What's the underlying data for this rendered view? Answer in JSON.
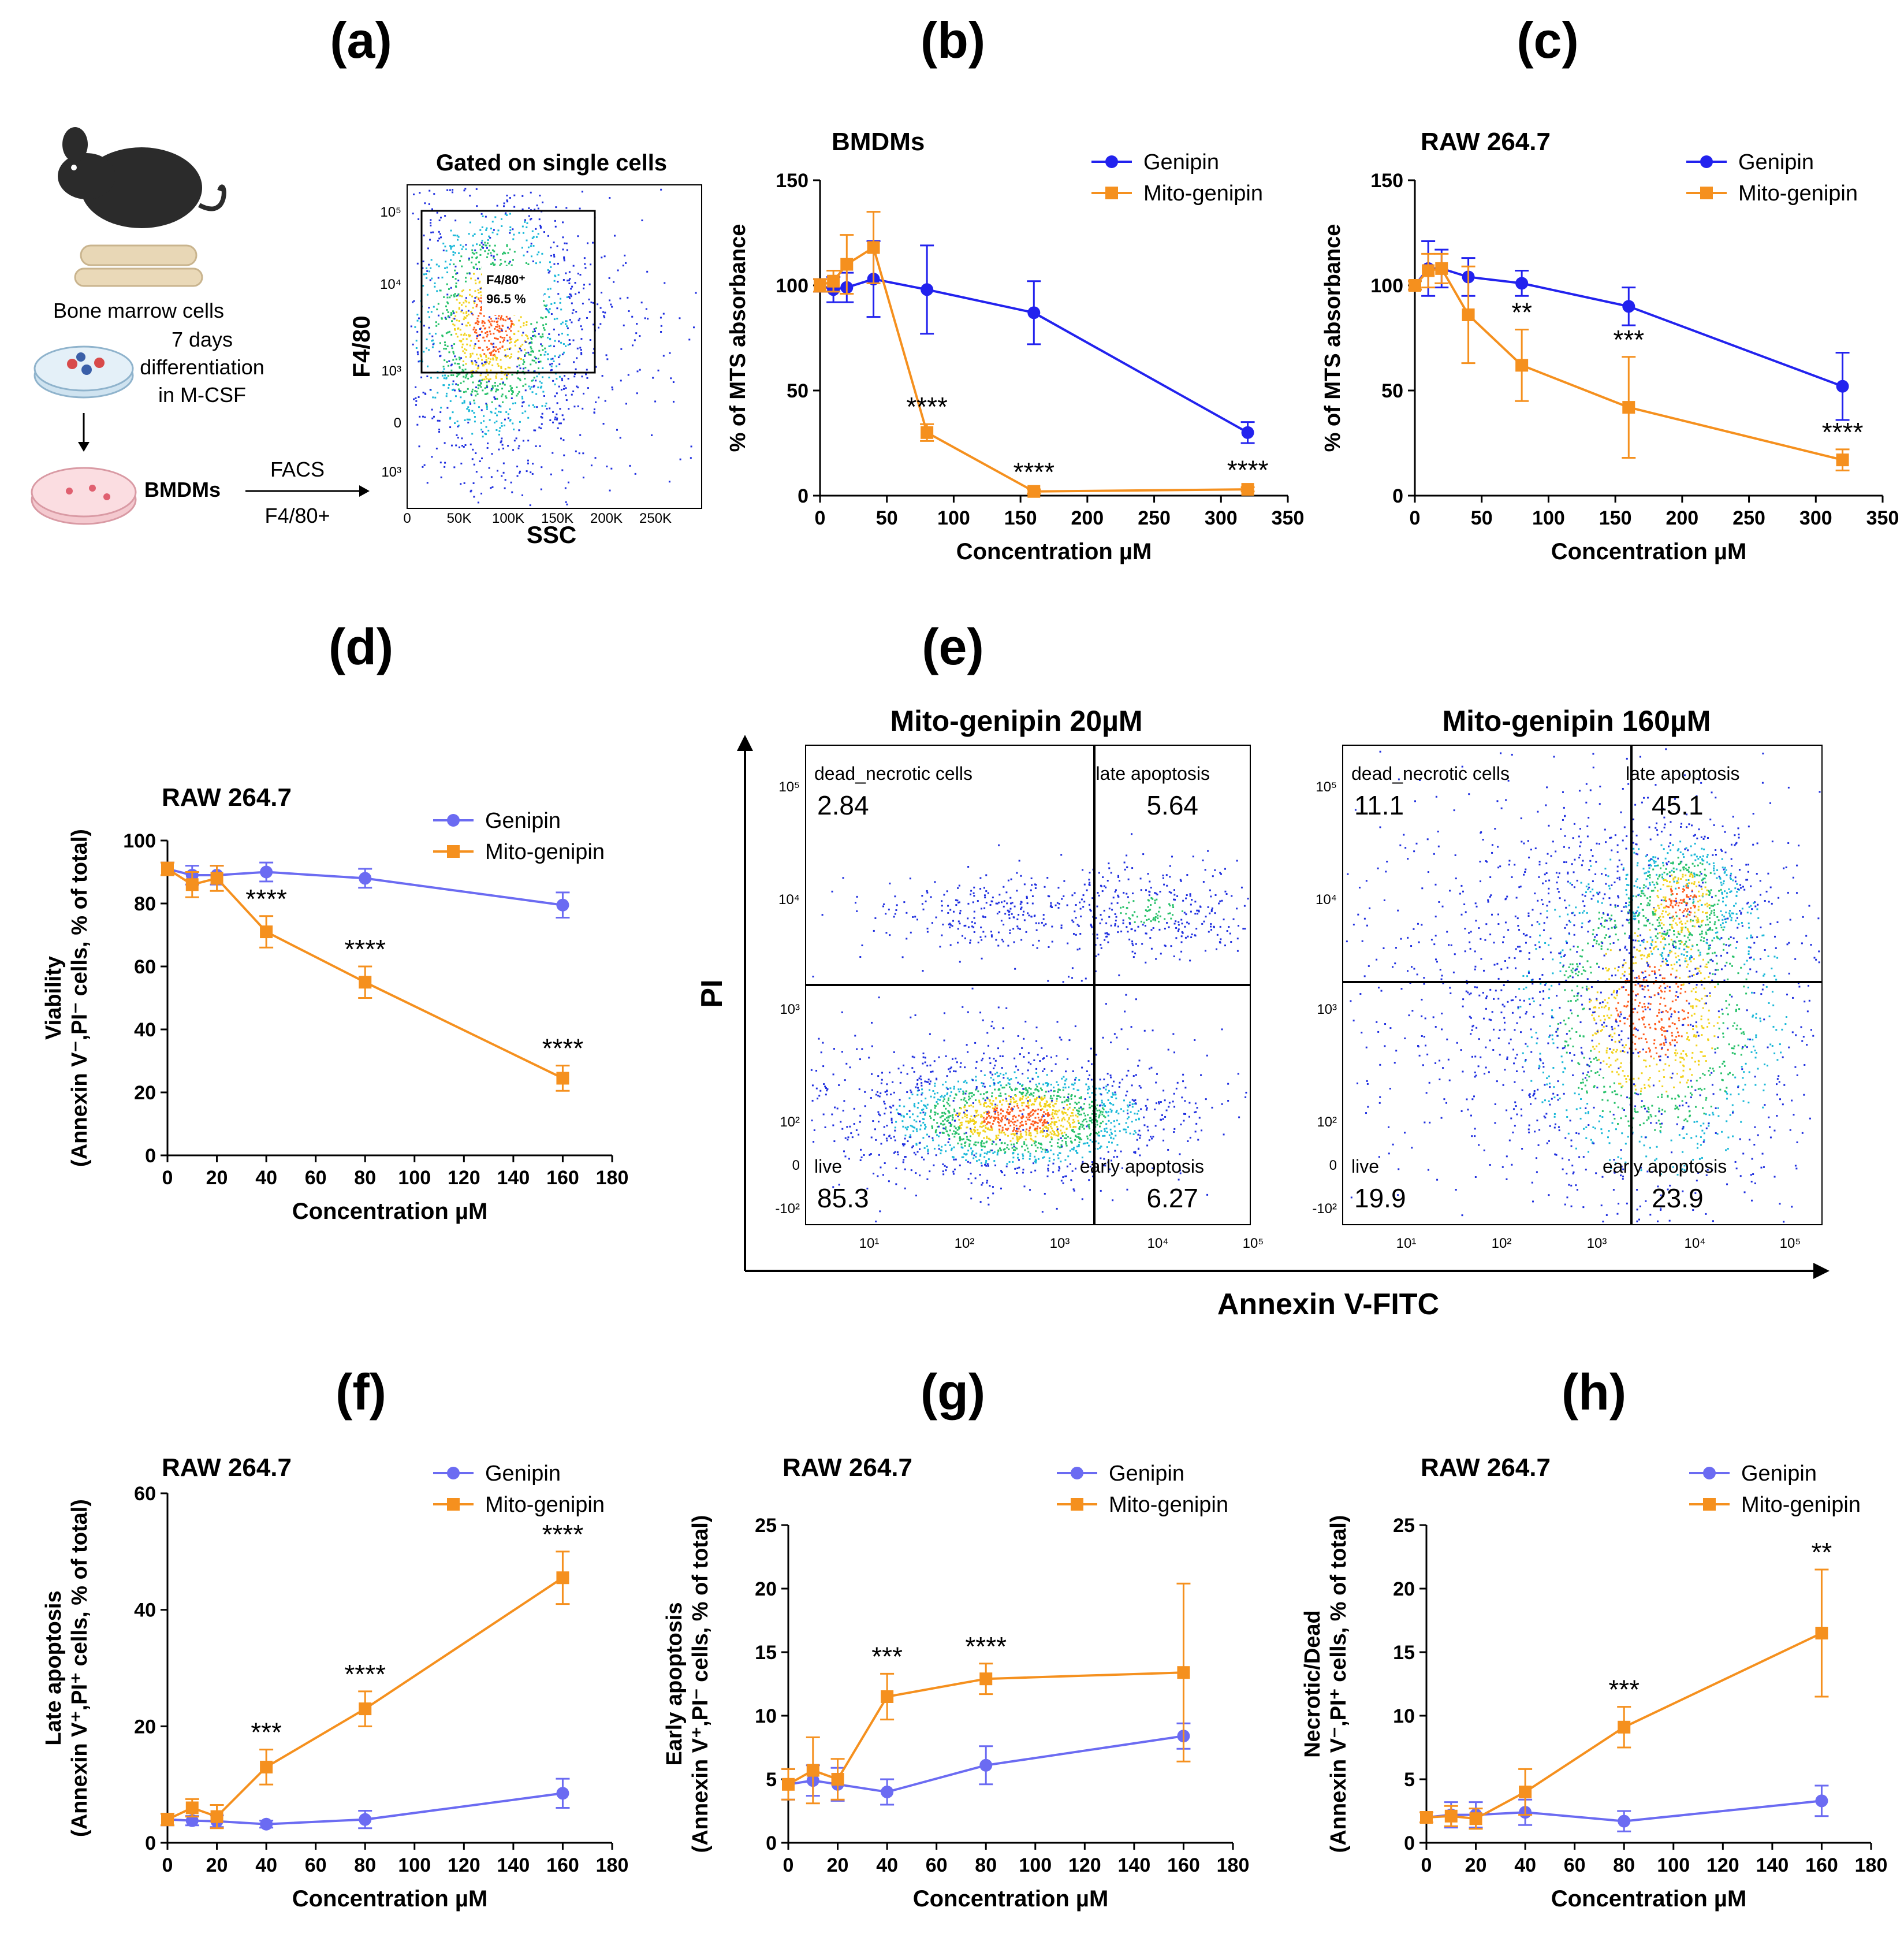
{
  "panel_labels": [
    "(a)",
    "(b)",
    "(c)",
    "(d)",
    "(e)",
    "(f)",
    "(g)",
    "(h)"
  ],
  "schematic": {
    "bone_marrow_label": "Bone marrow cells",
    "differentiation_label_1": "7 days",
    "differentiation_label_2": "differentiation",
    "differentiation_label_3": "in M-CSF",
    "bmdm_label": "BMDMs",
    "facs_label": "FACS",
    "marker_label": "F4/80+"
  },
  "gating_plot": {
    "title": "Gated on single cells",
    "ylabel": "F4/80",
    "xlabel": "SSC",
    "gate_label": "F4/80⁺",
    "gate_value": "96.5 %",
    "y_ticks": [
      "10⁵",
      "10⁴",
      "10³",
      "0",
      "10³"
    ],
    "x_ticks": [
      "0",
      "50K",
      "100K",
      "150K",
      "200K",
      "250K"
    ]
  },
  "annexin_panel": {
    "xlabel": "Annexin V-FITC",
    "ylabel": "PI",
    "y_ticks": [
      "10⁵",
      "10⁴",
      "10³",
      "10²",
      "0",
      "-10²"
    ],
    "x_ticks": [
      "10¹",
      "10²",
      "10³",
      "10⁴",
      "10⁵"
    ],
    "plots": [
      {
        "title": "Mito-genipin 20µM",
        "dead_label": "dead_necrotic cells",
        "dead": "2.84",
        "late_label": "late apoptosis",
        "late": "5.64",
        "live_label": "live",
        "live": "85.3",
        "early_label": "early apoptosis",
        "early": "6.27"
      },
      {
        "title": "Mito-genipin 160µM",
        "dead_label": "dead_necrotic cells",
        "dead": "11.1",
        "late_label": "late apoptosis",
        "late": "45.1",
        "live_label": "live",
        "live": "19.9",
        "early_label": "early apoptosis",
        "early": "23.9"
      }
    ]
  },
  "colors": {
    "genipin_dark": "#2222ee",
    "genipin_light": "#6b6bf2",
    "mito": "#f5901e"
  },
  "chart_data": [
    {
      "id": "b",
      "type": "line",
      "title": "BMDMs",
      "xlabel": "Concentration µM",
      "ylabel": "% of MTS absorbance",
      "xlim": [
        0,
        350
      ],
      "ylim": [
        0,
        150
      ],
      "xticks": [
        0,
        50,
        100,
        150,
        200,
        250,
        300,
        350
      ],
      "yticks": [
        0,
        50,
        100,
        150
      ],
      "series": [
        {
          "name": "Genipin",
          "x": [
            0,
            10,
            20,
            40,
            80,
            160,
            320
          ],
          "y": [
            100,
            98,
            99,
            103,
            98,
            87,
            30
          ],
          "err": [
            3,
            6,
            7,
            18,
            21,
            15,
            5
          ]
        },
        {
          "name": "Mito-genipin",
          "x": [
            0,
            10,
            20,
            40,
            80,
            160,
            320
          ],
          "y": [
            100,
            102,
            110,
            118,
            30,
            2,
            3
          ],
          "err": [
            3,
            5,
            14,
            17,
            4,
            1,
            1
          ]
        }
      ],
      "annotations": [
        {
          "x": 80,
          "y": 30,
          "text": "****"
        },
        {
          "x": 160,
          "y": 2,
          "text": "****"
        },
        {
          "x": 320,
          "y": 3,
          "text": "****"
        }
      ]
    },
    {
      "id": "c",
      "type": "line",
      "title": "RAW 264.7",
      "xlabel": "Concentration µM",
      "ylabel": "% of MTS absorbance",
      "xlim": [
        0,
        350
      ],
      "ylim": [
        0,
        150
      ],
      "xticks": [
        0,
        50,
        100,
        150,
        200,
        250,
        300,
        350
      ],
      "yticks": [
        0,
        50,
        100,
        150
      ],
      "series": [
        {
          "name": "Genipin",
          "x": [
            0,
            10,
            20,
            40,
            80,
            160,
            320
          ],
          "y": [
            100,
            108,
            108,
            104,
            101,
            90,
            52
          ],
          "err": [
            2,
            13,
            9,
            9,
            6,
            9,
            16
          ]
        },
        {
          "name": "Mito-genipin",
          "x": [
            0,
            10,
            20,
            40,
            80,
            160,
            320
          ],
          "y": [
            100,
            107,
            108,
            86,
            62,
            42,
            17
          ],
          "err": [
            2,
            8,
            7,
            23,
            17,
            24,
            5
          ]
        }
      ],
      "annotations": [
        {
          "x": 80,
          "y": 62,
          "text": "**"
        },
        {
          "x": 160,
          "y": 42,
          "text": "***"
        },
        {
          "x": 320,
          "y": 17,
          "text": "****"
        }
      ]
    },
    {
      "id": "d",
      "type": "line",
      "title": "RAW 264.7",
      "xlabel": "Concentration µM",
      "ylabel": "Viability",
      "ylabel2": "(Annexin V⁻,PI⁻ cells, % of total)",
      "xlim": [
        0,
        180
      ],
      "ylim": [
        0,
        100
      ],
      "xticks": [
        0,
        20,
        40,
        60,
        80,
        100,
        120,
        140,
        160,
        180
      ],
      "yticks": [
        0,
        20,
        40,
        60,
        80,
        100
      ],
      "series": [
        {
          "name": "Genipin",
          "x": [
            0,
            10,
            20,
            40,
            80,
            160
          ],
          "y": [
            91,
            89,
            89,
            90,
            88,
            79.5
          ],
          "err": [
            2,
            3,
            3,
            3,
            3,
            4
          ]
        },
        {
          "name": "Mito-genipin",
          "x": [
            0,
            10,
            20,
            40,
            80,
            160
          ],
          "y": [
            91,
            86,
            88,
            71,
            55,
            24.5
          ],
          "err": [
            2,
            4,
            4,
            5,
            5,
            4
          ]
        }
      ],
      "annotations": [
        {
          "x": 40,
          "y": 71,
          "text": "****"
        },
        {
          "x": 80,
          "y": 55,
          "text": "****"
        },
        {
          "x": 160,
          "y": 24.5,
          "text": "****"
        }
      ]
    },
    {
      "id": "f",
      "type": "line",
      "title": "RAW 264.7",
      "xlabel": "Concentration µM",
      "ylabel": "Late apoptosis",
      "ylabel2": "(Annexin V⁺,PI⁺ cells, % of total)",
      "xlim": [
        0,
        180
      ],
      "ylim": [
        0,
        60
      ],
      "xticks": [
        0,
        20,
        40,
        60,
        80,
        100,
        120,
        140,
        160,
        180
      ],
      "yticks": [
        0,
        20,
        40,
        60
      ],
      "series": [
        {
          "name": "Genipin",
          "x": [
            0,
            10,
            20,
            40,
            80,
            160
          ],
          "y": [
            4,
            3.8,
            3.7,
            3.2,
            4,
            8.5
          ],
          "err": [
            1,
            0.8,
            1,
            0.6,
            1.5,
            2.5
          ]
        },
        {
          "name": "Mito-genipin",
          "x": [
            0,
            10,
            20,
            40,
            80,
            160
          ],
          "y": [
            4,
            6,
            4.5,
            13,
            23,
            45.5
          ],
          "err": [
            1,
            1.5,
            2,
            3,
            3,
            4.5
          ]
        }
      ],
      "annotations": [
        {
          "x": 40,
          "y": 13,
          "text": "***"
        },
        {
          "x": 80,
          "y": 23,
          "text": "****"
        },
        {
          "x": 160,
          "y": 45.5,
          "text": "****"
        }
      ]
    },
    {
      "id": "g",
      "type": "line",
      "title": "RAW 264.7",
      "xlabel": "Concentration µM",
      "ylabel": "Early apoptosis",
      "ylabel2": "(Annexin V⁺,PI⁻ cells, % of total)",
      "xlim": [
        0,
        180
      ],
      "ylim": [
        0,
        25
      ],
      "xticks": [
        0,
        20,
        40,
        60,
        80,
        100,
        120,
        140,
        160,
        180
      ],
      "yticks": [
        0,
        5,
        10,
        15,
        20,
        25
      ],
      "series": [
        {
          "name": "Genipin",
          "x": [
            0,
            10,
            20,
            40,
            80,
            160
          ],
          "y": [
            4.6,
            4.9,
            4.6,
            4,
            6.1,
            8.4
          ],
          "err": [
            1.2,
            1.2,
            1.3,
            1,
            1.5,
            1
          ]
        },
        {
          "name": "Mito-genipin",
          "x": [
            0,
            10,
            20,
            40,
            80,
            160
          ],
          "y": [
            4.6,
            5.7,
            5,
            11.5,
            12.9,
            13.4
          ],
          "err": [
            1.2,
            2.6,
            1.6,
            1.8,
            1.2,
            7
          ]
        }
      ],
      "annotations": [
        {
          "x": 40,
          "y": 11.5,
          "text": "***"
        },
        {
          "x": 80,
          "y": 12.9,
          "text": "****"
        }
      ]
    },
    {
      "id": "h",
      "type": "line",
      "title": "RAW 264.7",
      "xlabel": "Concentration µM",
      "ylabel": "Necrotic/Dead",
      "ylabel2": "(Annexin V⁻,PI⁺ cells, % of total)",
      "xlim": [
        0,
        180
      ],
      "ylim": [
        0,
        25
      ],
      "xticks": [
        0,
        20,
        40,
        60,
        80,
        100,
        120,
        140,
        160,
        180
      ],
      "yticks": [
        0,
        5,
        10,
        15,
        20,
        25
      ],
      "series": [
        {
          "name": "Genipin",
          "x": [
            0,
            10,
            20,
            40,
            80,
            160
          ],
          "y": [
            2,
            2.2,
            2.2,
            2.4,
            1.7,
            3.3
          ],
          "err": [
            0.4,
            1,
            1,
            1,
            0.8,
            1.2
          ]
        },
        {
          "name": "Mito-genipin",
          "x": [
            0,
            10,
            20,
            40,
            80,
            160
          ],
          "y": [
            2,
            2.1,
            1.9,
            4,
            9.1,
            16.5
          ],
          "err": [
            0.4,
            0.8,
            0.8,
            1.8,
            1.6,
            5
          ]
        }
      ],
      "annotations": [
        {
          "x": 80,
          "y": 9.1,
          "text": "***"
        },
        {
          "x": 160,
          "y": 16.5,
          "text": "**"
        }
      ]
    }
  ]
}
